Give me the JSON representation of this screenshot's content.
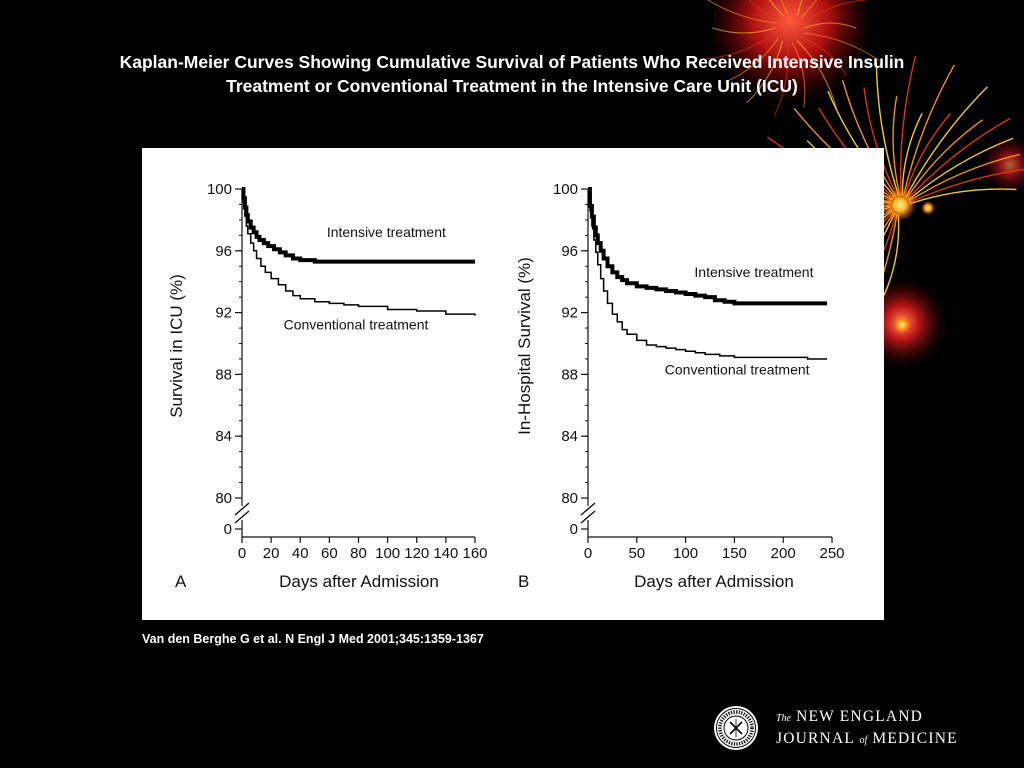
{
  "slide": {
    "title_line1": "Kaplan-Meier Curves Showing Cumulative Survival of Patients Who Received Intensive Insulin",
    "title_line2": "Treatment or Conventional Treatment in the Intensive Care Unit (ICU)",
    "citation": "Van den Berghe G et al. N Engl J Med 2001;345:1359-1367",
    "background_color": "#000000",
    "title_color": "#ffffff",
    "logo": {
      "the": "The",
      "line1": "NEW ENGLAND",
      "line2_a": "JOURNAL",
      "line2_of": "of",
      "line2_b": "MEDICINE",
      "seal_icon": "nejm-seal-icon"
    }
  },
  "chart_data": [
    {
      "type": "line",
      "panel": "A",
      "xlabel": "Days after Admission",
      "ylabel": "Survival in ICU (%)",
      "xlim": [
        0,
        160
      ],
      "ylim": [
        80,
        100
      ],
      "axis_break": true,
      "y_break_label": 0,
      "xticks": [
        0,
        20,
        40,
        60,
        80,
        100,
        120,
        140,
        160
      ],
      "xticklabels": [
        "0",
        "20",
        "40",
        "60",
        "80",
        "100",
        "120",
        "140",
        "160"
      ],
      "yticks": [
        80,
        84,
        88,
        92,
        96,
        100
      ],
      "yticklabels": [
        "80",
        "84",
        "88",
        "92",
        "96",
        "100"
      ],
      "y_minor_step": 1,
      "series": [
        {
          "name": "Intensive treatment",
          "style": "thick",
          "color": "#000000",
          "x": [
            0,
            1,
            2,
            3,
            4,
            6,
            8,
            10,
            12,
            15,
            18,
            22,
            26,
            30,
            35,
            40,
            50,
            60,
            80,
            100,
            120,
            140,
            160
          ],
          "y": [
            100,
            99.4,
            98.8,
            98.3,
            97.9,
            97.5,
            97.2,
            96.9,
            96.7,
            96.5,
            96.3,
            96.1,
            95.9,
            95.7,
            95.5,
            95.4,
            95.3,
            95.3,
            95.3,
            95.3,
            95.3,
            95.3,
            95.3
          ]
        },
        {
          "name": "Conventional treatment",
          "style": "thin",
          "color": "#000000",
          "x": [
            0,
            1,
            2,
            3,
            4,
            6,
            8,
            10,
            13,
            16,
            20,
            25,
            30,
            35,
            40,
            50,
            60,
            70,
            80,
            100,
            120,
            140,
            160
          ],
          "y": [
            100,
            99.1,
            98.3,
            97.6,
            97.1,
            96.5,
            96.0,
            95.5,
            95.0,
            94.6,
            94.2,
            93.8,
            93.4,
            93.1,
            92.9,
            92.7,
            92.6,
            92.5,
            92.4,
            92.2,
            92.1,
            91.9,
            91.8
          ]
        }
      ],
      "annotations": [
        {
          "text": "Intensive treatment",
          "x": 140,
          "y": 96.9
        },
        {
          "text": "Conventional treatment",
          "x": 128,
          "y": 90.9
        }
      ]
    },
    {
      "type": "line",
      "panel": "B",
      "xlabel": "Days after Admission",
      "ylabel": "In-Hospital Survival (%)",
      "xlim": [
        0,
        250
      ],
      "ylim": [
        80,
        100
      ],
      "axis_break": true,
      "y_break_label": 0,
      "xticks": [
        0,
        50,
        100,
        150,
        200,
        250
      ],
      "xticklabels": [
        "0",
        "50",
        "100",
        "150",
        "200",
        "250"
      ],
      "yticks": [
        80,
        84,
        88,
        92,
        96,
        100
      ],
      "yticklabels": [
        "80",
        "84",
        "88",
        "92",
        "96",
        "100"
      ],
      "y_minor_step": 1,
      "series": [
        {
          "name": "Intensive treatment",
          "style": "thick",
          "color": "#000000",
          "x": [
            0,
            2,
            4,
            6,
            8,
            10,
            13,
            16,
            20,
            25,
            30,
            35,
            40,
            50,
            60,
            70,
            80,
            90,
            100,
            110,
            120,
            130,
            140,
            150,
            175,
            200,
            225,
            245
          ],
          "y": [
            100,
            98.9,
            98.2,
            97.5,
            97.0,
            96.5,
            96.0,
            95.5,
            95.0,
            94.6,
            94.3,
            94.1,
            93.9,
            93.7,
            93.6,
            93.5,
            93.4,
            93.3,
            93.2,
            93.1,
            93.0,
            92.8,
            92.7,
            92.6,
            92.6,
            92.6,
            92.6,
            92.6
          ]
        },
        {
          "name": "Conventional treatment",
          "style": "thin",
          "color": "#000000",
          "x": [
            0,
            2,
            4,
            6,
            8,
            10,
            13,
            16,
            20,
            25,
            30,
            35,
            40,
            50,
            60,
            70,
            80,
            90,
            100,
            110,
            120,
            135,
            150,
            175,
            200,
            225,
            245
          ],
          "y": [
            100,
            98.6,
            97.6,
            96.7,
            95.9,
            95.1,
            94.2,
            93.4,
            92.6,
            91.9,
            91.4,
            90.9,
            90.6,
            90.2,
            89.9,
            89.8,
            89.7,
            89.6,
            89.5,
            89.4,
            89.3,
            89.2,
            89.1,
            89.1,
            89.1,
            89.0,
            89.0
          ]
        }
      ],
      "annotations": [
        {
          "text": "Intensive treatment",
          "x": 231,
          "y": 94.3
        },
        {
          "text": "Conventional treatment",
          "x": 227,
          "y": 88.0
        }
      ]
    }
  ]
}
